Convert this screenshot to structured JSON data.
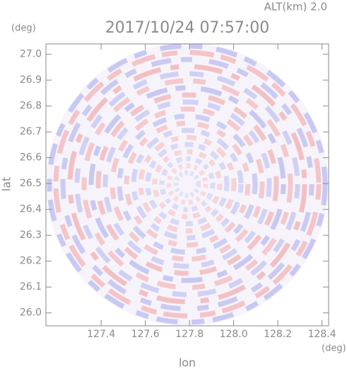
{
  "altitude_label": "ALT(km) 2.0",
  "chart_data": {
    "type": "radar-ppi",
    "title": "2017/10/24 07:57:00",
    "x_label": "lon",
    "y_label": "lat",
    "x_unit": "(deg)",
    "y_unit": "(deg)",
    "xlim": [
      127.15,
      128.43
    ],
    "ylim": [
      25.95,
      27.04
    ],
    "xticks": [
      127.4,
      127.6,
      127.8,
      {
        "value": 128,
        "label": "128.0"
      },
      128.2,
      128.4
    ],
    "yticks": [
      {
        "value": 26,
        "label": "26.0"
      },
      26.1,
      26.2,
      26.3,
      26.4,
      26.5,
      26.6,
      26.7,
      26.8,
      26.9,
      {
        "value": 27,
        "label": "27.0"
      }
    ]
  }
}
